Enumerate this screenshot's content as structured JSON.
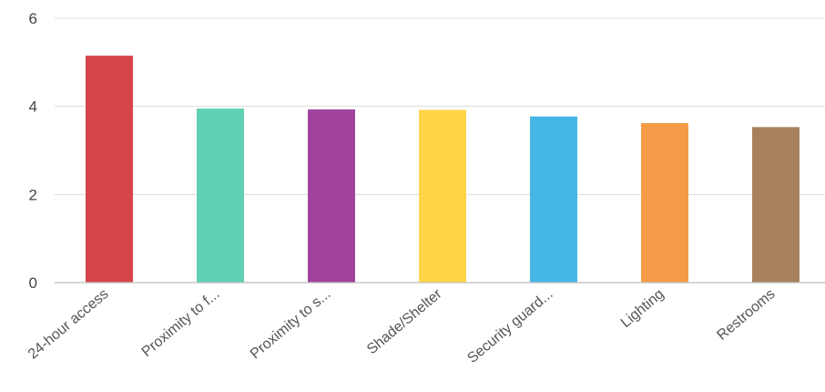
{
  "chart_data": {
    "type": "bar",
    "title": "",
    "xlabel": "",
    "ylabel": "",
    "ylim": [
      0,
      6
    ],
    "yticks": [
      0,
      2,
      4,
      6
    ],
    "grid": true,
    "categories": [
      "24-hour access",
      "Proximity to f...",
      "Proximity to s...",
      "Shade/Shelter",
      "Security guard...",
      "Lighting",
      "Restrooms"
    ],
    "values": [
      5.15,
      3.95,
      3.93,
      3.92,
      3.77,
      3.62,
      3.53
    ],
    "colors": [
      "#d5464a",
      "#5fd0b4",
      "#a1439e",
      "#ffd447",
      "#45b5e6",
      "#f59b48",
      "#a7815e"
    ]
  }
}
